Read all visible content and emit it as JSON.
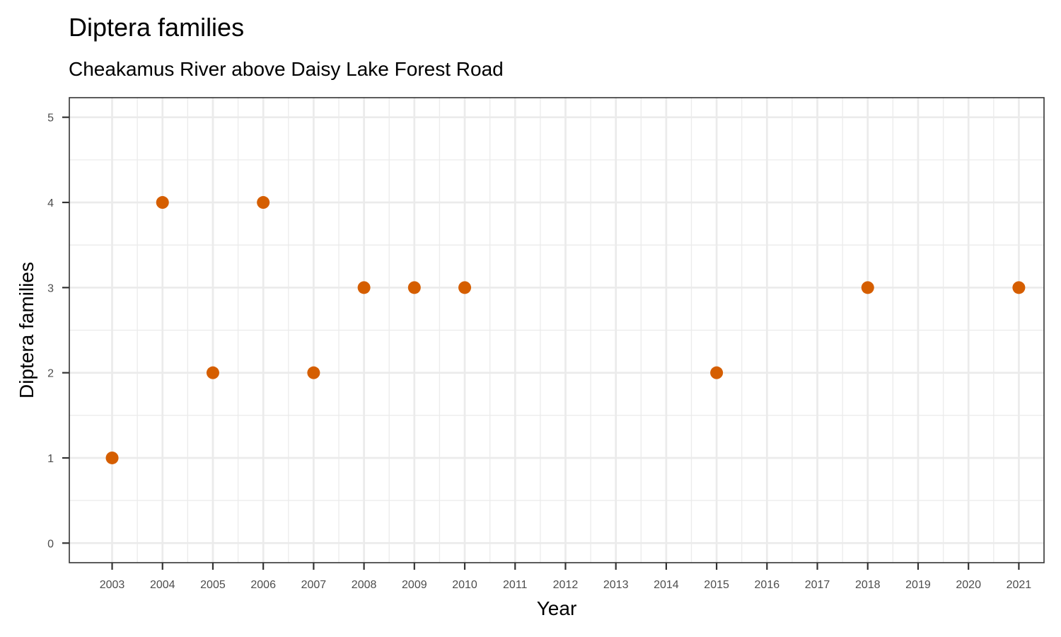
{
  "chart_data": {
    "type": "scatter",
    "title": "Diptera families",
    "subtitle": "Cheakamus River above Daisy Lake Forest Road",
    "xlabel": "Year",
    "ylabel": "Diptera families",
    "x_ticks": [
      "2003",
      "2004",
      "2005",
      "2006",
      "2007",
      "2008",
      "2009",
      "2010",
      "2011",
      "2012",
      "2013",
      "2014",
      "2015",
      "2016",
      "2017",
      "2018",
      "2019",
      "2020",
      "2021"
    ],
    "y_ticks": [
      "0",
      "1",
      "2",
      "3",
      "4",
      "5"
    ],
    "xlim": [
      2002.15,
      2021.5
    ],
    "ylim": [
      -0.23,
      5.23
    ],
    "grid": true,
    "legend": "none",
    "point_color": "#D55E00",
    "x": [
      2003,
      2004,
      2005,
      2006,
      2007,
      2008,
      2009,
      2010,
      2015,
      2018,
      2021
    ],
    "y": [
      1,
      4,
      2,
      4,
      2,
      3,
      3,
      3,
      2,
      3,
      3
    ]
  }
}
